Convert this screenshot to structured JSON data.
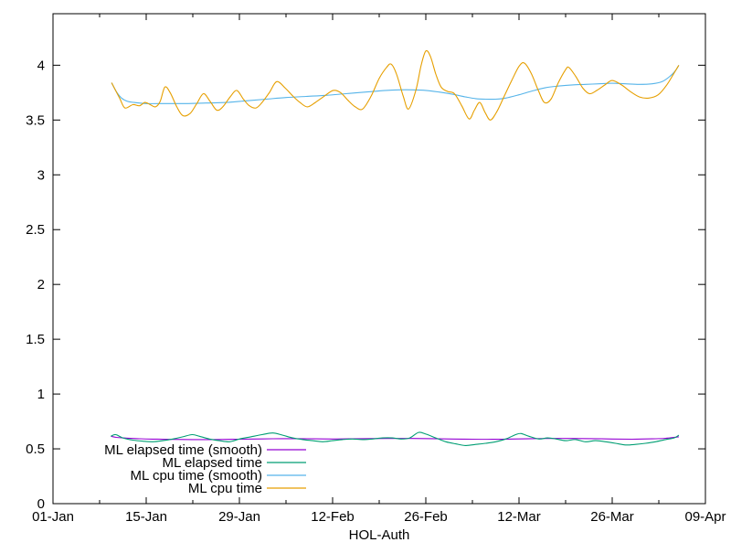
{
  "colors": {
    "background": "#ffffff",
    "border": "#000000",
    "text": "#000000"
  },
  "chart_data": {
    "type": "line",
    "xlabel": "HOL-Auth",
    "ylabel": "",
    "grid": false,
    "legend_position": "bottom-left-inside",
    "x_axis": {
      "unit": "days since 01-Jan",
      "range": [
        0,
        98
      ],
      "major_ticks": [
        {
          "day": 0,
          "label": "01-Jan"
        },
        {
          "day": 14,
          "label": "15-Jan"
        },
        {
          "day": 28,
          "label": "29-Jan"
        },
        {
          "day": 42,
          "label": "12-Feb"
        },
        {
          "day": 56,
          "label": "26-Feb"
        },
        {
          "day": 70,
          "label": "12-Mar"
        },
        {
          "day": 84,
          "label": "26-Mar"
        },
        {
          "day": 98,
          "label": "09-Apr"
        }
      ],
      "minor_tick_days": [
        7,
        21,
        35,
        49,
        63,
        77,
        91
      ]
    },
    "y_axis": {
      "range": [
        0,
        4.47
      ],
      "ticks": [
        0,
        0.5,
        1,
        1.5,
        2,
        2.5,
        3,
        3.5,
        4
      ],
      "tick_labels": [
        "0",
        "0.5",
        "1",
        "1.5",
        "2",
        "2.5",
        "3",
        "3.5",
        "4"
      ]
    },
    "series": [
      {
        "name": "ML elapsed time (smooth)",
        "color": "#9400D3",
        "points": [
          [
            8.7,
            0.615
          ],
          [
            9.5,
            0.605
          ],
          [
            11,
            0.598
          ],
          [
            13,
            0.592
          ],
          [
            15,
            0.589
          ],
          [
            18,
            0.586
          ],
          [
            21,
            0.585
          ],
          [
            24,
            0.585
          ],
          [
            27,
            0.587
          ],
          [
            30,
            0.59
          ],
          [
            33,
            0.592
          ],
          [
            36,
            0.593
          ],
          [
            39,
            0.591
          ],
          [
            42,
            0.59
          ],
          [
            45,
            0.592
          ],
          [
            48,
            0.594
          ],
          [
            51,
            0.595
          ],
          [
            54,
            0.595
          ],
          [
            57,
            0.593
          ],
          [
            60,
            0.59
          ],
          [
            63,
            0.588
          ],
          [
            66,
            0.587
          ],
          [
            69,
            0.59
          ],
          [
            72,
            0.593
          ],
          [
            75,
            0.595
          ],
          [
            78,
            0.595
          ],
          [
            81,
            0.593
          ],
          [
            84,
            0.59
          ],
          [
            87,
            0.588
          ],
          [
            90,
            0.591
          ],
          [
            92,
            0.596
          ],
          [
            94,
            0.61
          ]
        ]
      },
      {
        "name": "ML elapsed time",
        "color": "#009E73",
        "points": [
          [
            8.7,
            0.615
          ],
          [
            9.4,
            0.63
          ],
          [
            10.5,
            0.6
          ],
          [
            12,
            0.58
          ],
          [
            13.5,
            0.57
          ],
          [
            15,
            0.565
          ],
          [
            16.5,
            0.575
          ],
          [
            18,
            0.59
          ],
          [
            19.5,
            0.61
          ],
          [
            20.9,
            0.63
          ],
          [
            22,
            0.615
          ],
          [
            23.5,
            0.59
          ],
          [
            25,
            0.575
          ],
          [
            26.5,
            0.565
          ],
          [
            28,
            0.59
          ],
          [
            29.7,
            0.61
          ],
          [
            31.4,
            0.63
          ],
          [
            33,
            0.645
          ],
          [
            34.5,
            0.625
          ],
          [
            36,
            0.6
          ],
          [
            37.5,
            0.585
          ],
          [
            39,
            0.575
          ],
          [
            40.5,
            0.565
          ],
          [
            42,
            0.575
          ],
          [
            43.5,
            0.585
          ],
          [
            45,
            0.59
          ],
          [
            46.5,
            0.585
          ],
          [
            48,
            0.59
          ],
          [
            49.5,
            0.6
          ],
          [
            51,
            0.6
          ],
          [
            52.3,
            0.59
          ],
          [
            53.6,
            0.6
          ],
          [
            54.9,
            0.65
          ],
          [
            56,
            0.635
          ],
          [
            57.5,
            0.6
          ],
          [
            59,
            0.565
          ],
          [
            60.5,
            0.545
          ],
          [
            62,
            0.53
          ],
          [
            63.5,
            0.54
          ],
          [
            65,
            0.55
          ],
          [
            66.5,
            0.565
          ],
          [
            68,
            0.59
          ],
          [
            69.5,
            0.63
          ],
          [
            70.3,
            0.64
          ],
          [
            71.5,
            0.615
          ],
          [
            73,
            0.59
          ],
          [
            74.3,
            0.6
          ],
          [
            75.6,
            0.59
          ],
          [
            77,
            0.575
          ],
          [
            78.5,
            0.585
          ],
          [
            80,
            0.565
          ],
          [
            81.5,
            0.575
          ],
          [
            83,
            0.565
          ],
          [
            84.5,
            0.55
          ],
          [
            86,
            0.535
          ],
          [
            87.5,
            0.54
          ],
          [
            89,
            0.55
          ],
          [
            90.5,
            0.565
          ],
          [
            92,
            0.585
          ],
          [
            93.3,
            0.6
          ],
          [
            94,
            0.625
          ]
        ]
      },
      {
        "name": "ML cpu time (smooth)",
        "color": "#56B4E9",
        "points": [
          [
            8.8,
            3.84
          ],
          [
            9.5,
            3.76
          ],
          [
            10.3,
            3.7
          ],
          [
            11.2,
            3.67
          ],
          [
            12.2,
            3.66
          ],
          [
            14,
            3.65
          ],
          [
            17,
            3.65
          ],
          [
            20,
            3.65
          ],
          [
            23,
            3.655
          ],
          [
            26,
            3.66
          ],
          [
            29,
            3.675
          ],
          [
            32,
            3.69
          ],
          [
            35,
            3.705
          ],
          [
            38,
            3.715
          ],
          [
            41,
            3.725
          ],
          [
            44,
            3.74
          ],
          [
            47,
            3.755
          ],
          [
            50,
            3.77
          ],
          [
            52,
            3.775
          ],
          [
            54,
            3.775
          ],
          [
            56,
            3.77
          ],
          [
            58,
            3.755
          ],
          [
            60,
            3.735
          ],
          [
            62,
            3.71
          ],
          [
            63.5,
            3.695
          ],
          [
            65,
            3.69
          ],
          [
            66.5,
            3.69
          ],
          [
            68,
            3.7
          ],
          [
            70,
            3.73
          ],
          [
            72,
            3.765
          ],
          [
            74,
            3.795
          ],
          [
            76,
            3.81
          ],
          [
            78,
            3.82
          ],
          [
            80,
            3.825
          ],
          [
            82,
            3.83
          ],
          [
            84,
            3.835
          ],
          [
            86,
            3.83
          ],
          [
            88,
            3.825
          ],
          [
            90,
            3.83
          ],
          [
            91.5,
            3.85
          ],
          [
            92.7,
            3.9
          ],
          [
            93.5,
            3.95
          ],
          [
            94,
            4.0
          ]
        ]
      },
      {
        "name": "ML cpu time",
        "color": "#E69F00",
        "points": [
          [
            8.8,
            3.84
          ],
          [
            10.0,
            3.7
          ],
          [
            10.8,
            3.61
          ],
          [
            12.0,
            3.64
          ],
          [
            13.0,
            3.63
          ],
          [
            13.8,
            3.66
          ],
          [
            14.6,
            3.64
          ],
          [
            15.4,
            3.62
          ],
          [
            16.1,
            3.67
          ],
          [
            16.8,
            3.8
          ],
          [
            17.6,
            3.75
          ],
          [
            18.6,
            3.62
          ],
          [
            19.5,
            3.54
          ],
          [
            20.6,
            3.56
          ],
          [
            21.6,
            3.65
          ],
          [
            22.6,
            3.74
          ],
          [
            23.6,
            3.67
          ],
          [
            24.6,
            3.59
          ],
          [
            25.5,
            3.62
          ],
          [
            26.6,
            3.71
          ],
          [
            27.6,
            3.77
          ],
          [
            28.6,
            3.69
          ],
          [
            29.5,
            3.63
          ],
          [
            30.5,
            3.61
          ],
          [
            31.4,
            3.66
          ],
          [
            32.5,
            3.75
          ],
          [
            33.6,
            3.85
          ],
          [
            34.9,
            3.79
          ],
          [
            36.0,
            3.72
          ],
          [
            37.1,
            3.66
          ],
          [
            38.2,
            3.62
          ],
          [
            39.4,
            3.66
          ],
          [
            40.8,
            3.72
          ],
          [
            42.1,
            3.77
          ],
          [
            43.2,
            3.75
          ],
          [
            44.3,
            3.68
          ],
          [
            45.4,
            3.62
          ],
          [
            46.5,
            3.6
          ],
          [
            47.8,
            3.72
          ],
          [
            49.0,
            3.88
          ],
          [
            50.1,
            3.98
          ],
          [
            50.8,
            4.01
          ],
          [
            51.6,
            3.92
          ],
          [
            52.6,
            3.72
          ],
          [
            53.4,
            3.6
          ],
          [
            54.5,
            3.77
          ],
          [
            55.3,
            4.0
          ],
          [
            56.0,
            4.13
          ],
          [
            56.7,
            4.08
          ],
          [
            57.5,
            3.92
          ],
          [
            58.3,
            3.8
          ],
          [
            59.3,
            3.76
          ],
          [
            60.3,
            3.74
          ],
          [
            61.4,
            3.63
          ],
          [
            62.5,
            3.51
          ],
          [
            63.3,
            3.59
          ],
          [
            64.1,
            3.66
          ],
          [
            64.9,
            3.57
          ],
          [
            65.7,
            3.5
          ],
          [
            66.7,
            3.58
          ],
          [
            67.8,
            3.72
          ],
          [
            68.9,
            3.86
          ],
          [
            70.0,
            3.99
          ],
          [
            70.8,
            4.02
          ],
          [
            71.8,
            3.93
          ],
          [
            72.9,
            3.77
          ],
          [
            73.8,
            3.66
          ],
          [
            74.8,
            3.69
          ],
          [
            75.9,
            3.84
          ],
          [
            77.0,
            3.96
          ],
          [
            77.5,
            3.98
          ],
          [
            78.5,
            3.9
          ],
          [
            79.6,
            3.79
          ],
          [
            80.6,
            3.74
          ],
          [
            81.7,
            3.77
          ],
          [
            82.9,
            3.82
          ],
          [
            84.0,
            3.86
          ],
          [
            85.4,
            3.82
          ],
          [
            86.7,
            3.76
          ],
          [
            88.1,
            3.71
          ],
          [
            89.5,
            3.7
          ],
          [
            90.9,
            3.73
          ],
          [
            92.2,
            3.82
          ],
          [
            93.3,
            3.93
          ],
          [
            94.0,
            4.0
          ]
        ]
      }
    ]
  }
}
